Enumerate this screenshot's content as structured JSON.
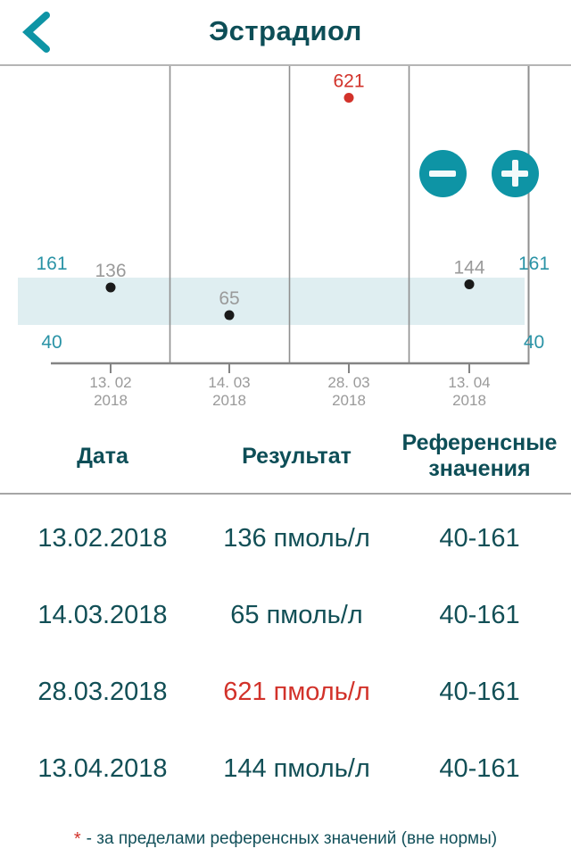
{
  "colors": {
    "accent_teal": "#0e94a5",
    "dark_teal_text": "#0d4e57",
    "range_label_teal": "#2a93a6",
    "gray_label": "#9a9a9a",
    "band": "#dfeef1",
    "grid": "#8f8f8f",
    "point_black": "#1a1a1a",
    "alert_red": "#d2322a"
  },
  "header": {
    "title": "Эстрадиол"
  },
  "controls": {
    "zoom_out": "minus",
    "zoom_in": "plus"
  },
  "chart_data": {
    "type": "scatter",
    "title": "Эстрадиол",
    "x": [
      "13.02.2018",
      "14.03.2018",
      "28.03.2018",
      "13.04.2018"
    ],
    "x_tick_labels": [
      [
        "13. 02",
        "2018"
      ],
      [
        "14. 03",
        "2018"
      ],
      [
        "28. 03",
        "2018"
      ],
      [
        "13. 04",
        "2018"
      ]
    ],
    "values": [
      136,
      65,
      621,
      144
    ],
    "unit": "пмоль/л",
    "reference_range": {
      "low": 40,
      "high": 161
    },
    "out_of_range_indices": [
      2
    ],
    "y_axis_labels_left": [
      "161",
      "40"
    ],
    "y_axis_labels_right": [
      "161",
      "40"
    ],
    "grid": "vertical-separators",
    "legend": "none"
  },
  "table": {
    "headers": [
      "Дата",
      "Результат",
      "Референсные значения"
    ],
    "rows": [
      {
        "date": "13.02.2018",
        "result": "136 пмоль/л",
        "reference": "40-161",
        "out_of_range": false
      },
      {
        "date": "14.03.2018",
        "result": "65 пмоль/л",
        "reference": "40-161",
        "out_of_range": false
      },
      {
        "date": "28.03.2018",
        "result": "621 пмоль/л",
        "reference": "40-161",
        "out_of_range": true
      },
      {
        "date": "13.04.2018",
        "result": "144 пмоль/л",
        "reference": "40-161",
        "out_of_range": false
      }
    ]
  },
  "footnote": {
    "marker": "*",
    "text": "- за пределами референсных значений (вне нормы)"
  }
}
